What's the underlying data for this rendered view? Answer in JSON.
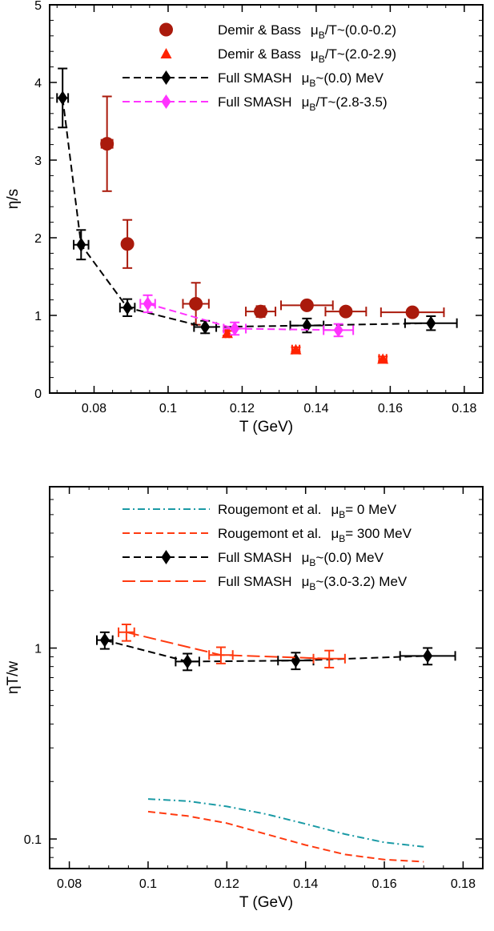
{
  "chart_data": [
    {
      "type": "scatter",
      "xlabel": "T (GeV)",
      "ylabel": "η/s",
      "xlim": [
        0.068,
        0.185
      ],
      "ylim": [
        0,
        5
      ],
      "xticks": [
        "0.08",
        "0.1",
        "0.12",
        "0.14",
        "0.16",
        "0.18"
      ],
      "yticks": [
        "0",
        "1",
        "2",
        "3",
        "4",
        "5"
      ],
      "legend_position": "top-right",
      "series": [
        {
          "name": "Demir & Bass μB/T~(0.0-0.2)",
          "label_main": "Demir & Bass",
          "label_mu": "μ",
          "label_sub": "B",
          "label_rest": "/T~(0.0-0.2)",
          "color": "#aa1a0c",
          "marker": "circle",
          "line": "none",
          "points": [
            {
              "x": 0.0835,
              "y": 3.21,
              "xerr": 0.0015,
              "yerr": 0.61
            },
            {
              "x": 0.089,
              "y": 1.92,
              "xerr": 0.0005,
              "yerr": 0.31
            },
            {
              "x": 0.1075,
              "y": 1.15,
              "xerr": 0.0035,
              "yerr": 0.27
            },
            {
              "x": 0.125,
              "y": 1.05,
              "xerr": 0.004,
              "yerr": 0.07
            },
            {
              "x": 0.1375,
              "y": 1.13,
              "xerr": 0.007,
              "yerr": 0.04
            },
            {
              "x": 0.148,
              "y": 1.05,
              "xerr": 0.0055,
              "yerr": 0.04
            },
            {
              "x": 0.166,
              "y": 1.04,
              "xerr": 0.0085,
              "yerr": 0.04
            }
          ]
        },
        {
          "name": "Demir & Bass μB/T~(2.0-2.9)",
          "label_main": "Demir & Bass",
          "label_mu": "μ",
          "label_sub": "B",
          "label_rest": "/T~(2.0-2.9)",
          "color": "#ff2200",
          "marker": "triangle",
          "line": "none",
          "points": [
            {
              "x": 0.116,
              "y": 0.77,
              "xerr": 0.0005,
              "yerr": 0.03
            },
            {
              "x": 0.1345,
              "y": 0.56,
              "xerr": 0.001,
              "yerr": 0.03
            },
            {
              "x": 0.158,
              "y": 0.44,
              "xerr": 0.001,
              "yerr": 0.03
            }
          ]
        },
        {
          "name": "Full SMASH μB~(0.0) MeV",
          "label_main": "Full SMASH",
          "label_mu": "μ",
          "label_sub": "B",
          "label_rest": "~(0.0) MeV",
          "color": "#000000",
          "marker": "diamond",
          "line": "dashed",
          "points": [
            {
              "x": 0.0715,
              "y": 3.8,
              "xerr": 0.0015,
              "yerr": 0.38
            },
            {
              "x": 0.0765,
              "y": 1.91,
              "xerr": 0.002,
              "yerr": 0.19
            },
            {
              "x": 0.089,
              "y": 1.1,
              "xerr": 0.002,
              "yerr": 0.11
            },
            {
              "x": 0.11,
              "y": 0.85,
              "xerr": 0.003,
              "yerr": 0.08
            },
            {
              "x": 0.1375,
              "y": 0.87,
              "xerr": 0.0045,
              "yerr": 0.09
            },
            {
              "x": 0.171,
              "y": 0.9,
              "xerr": 0.007,
              "yerr": 0.09
            }
          ]
        },
        {
          "name": "Full SMASH μB/T~(2.8-3.5)",
          "label_main": "Full SMASH",
          "label_mu": "μ",
          "label_sub": "B",
          "label_rest": "/T~(2.8-3.5)",
          "color": "#ff33ff",
          "marker": "diamond",
          "line": "dashed",
          "points": [
            {
              "x": 0.0945,
              "y": 1.15,
              "xerr": 0.002,
              "yerr": 0.11
            },
            {
              "x": 0.118,
              "y": 0.83,
              "xerr": 0.003,
              "yerr": 0.08
            },
            {
              "x": 0.146,
              "y": 0.81,
              "xerr": 0.004,
              "yerr": 0.08
            }
          ]
        }
      ]
    },
    {
      "type": "line",
      "xlabel": "T (GeV)",
      "ylabel": "ηT/w",
      "xlim": [
        0.075,
        0.185
      ],
      "ylim": [
        0.07,
        7
      ],
      "y_scale": "log",
      "xticks": [
        "0.08",
        "0.1",
        "0.12",
        "0.14",
        "0.16",
        "0.18"
      ],
      "yticks": [
        "0.1",
        "1"
      ],
      "legend_position": "top-right",
      "series": [
        {
          "name": "Rougemont et al. μB= 0 MeV",
          "label_main": "Rougemont et al.",
          "label_mu": "μ",
          "label_sub": "B",
          "label_rest": "= 0 MeV",
          "color": "#1a9aa5",
          "line": "dashdot",
          "marker": "none",
          "points": [
            {
              "x": 0.1,
              "y": 0.162
            },
            {
              "x": 0.11,
              "y": 0.158
            },
            {
              "x": 0.12,
              "y": 0.148
            },
            {
              "x": 0.13,
              "y": 0.135
            },
            {
              "x": 0.14,
              "y": 0.12
            },
            {
              "x": 0.15,
              "y": 0.106
            },
            {
              "x": 0.16,
              "y": 0.096
            },
            {
              "x": 0.17,
              "y": 0.091
            }
          ]
        },
        {
          "name": "Rougemont et al. μB= 300 MeV",
          "label_main": "Rougemont et al.",
          "label_mu": "μ",
          "label_sub": "B",
          "label_rest": "= 300 MeV",
          "color": "#ff3a10",
          "line": "dashed",
          "marker": "none",
          "points": [
            {
              "x": 0.1,
              "y": 0.139
            },
            {
              "x": 0.11,
              "y": 0.132
            },
            {
              "x": 0.12,
              "y": 0.121
            },
            {
              "x": 0.13,
              "y": 0.106
            },
            {
              "x": 0.14,
              "y": 0.093
            },
            {
              "x": 0.15,
              "y": 0.083
            },
            {
              "x": 0.16,
              "y": 0.078
            },
            {
              "x": 0.17,
              "y": 0.076
            }
          ]
        },
        {
          "name": "Full SMASH μB~(0.0) MeV",
          "label_main": "Full SMASH",
          "label_mu": "μ",
          "label_sub": "B",
          "label_rest": "~(0.0) MeV",
          "color": "#000000",
          "line": "dashed",
          "marker": "diamond",
          "points": [
            {
              "x": 0.089,
              "y": 1.1,
              "xerr": 0.002,
              "yerr": 0.11
            },
            {
              "x": 0.11,
              "y": 0.85,
              "xerr": 0.003,
              "yerr": 0.085
            },
            {
              "x": 0.1375,
              "y": 0.86,
              "xerr": 0.0045,
              "yerr": 0.086
            },
            {
              "x": 0.171,
              "y": 0.91,
              "xerr": 0.007,
              "yerr": 0.091
            }
          ]
        },
        {
          "name": "Full SMASH μB~(3.0-3.2) MeV",
          "label_main": "Full SMASH",
          "label_mu": "μ",
          "label_sub": "B",
          "label_rest": "~(3.0-3.2) MeV",
          "color": "#ff3a10",
          "line": "longdash",
          "marker": "none",
          "points": [
            {
              "x": 0.0945,
              "y": 1.21,
              "xerr": 0.002,
              "yerr": 0.12
            },
            {
              "x": 0.1185,
              "y": 0.92,
              "xerr": 0.003,
              "yerr": 0.09
            },
            {
              "x": 0.146,
              "y": 0.88,
              "xerr": 0.004,
              "yerr": 0.09
            }
          ]
        }
      ]
    }
  ]
}
